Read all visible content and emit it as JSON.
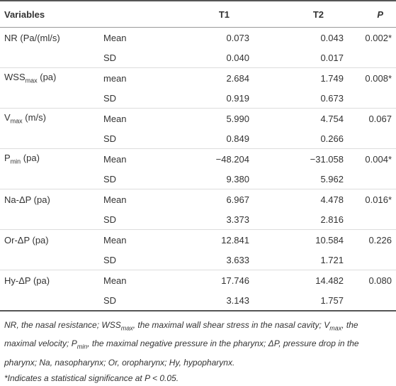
{
  "table": {
    "header": {
      "variables": "Variables",
      "t1": "T1",
      "t2": "T2",
      "p": "P"
    },
    "groups": [
      {
        "variable": {
          "base": "NR (Pa/(ml/s)"
        },
        "rows": [
          {
            "stat": "Mean",
            "t1": "0.073",
            "t2": "0.043",
            "p": "0.002*"
          },
          {
            "stat": "SD",
            "t1": "0.040",
            "t2": "0.017"
          }
        ]
      },
      {
        "variable": {
          "base": "WSS",
          "sub": "max",
          "suffix": " (pa)"
        },
        "rows": [
          {
            "stat": "mean",
            "t1": "2.684",
            "t2": "1.749",
            "p": "0.008*"
          },
          {
            "stat": "SD",
            "t1": "0.919",
            "t2": "0.673"
          }
        ]
      },
      {
        "variable": {
          "base": "V",
          "sub": "max",
          "suffix": " (m/s)"
        },
        "rows": [
          {
            "stat": "Mean",
            "t1": "5.990",
            "t2": "4.754",
            "p": "0.067"
          },
          {
            "stat": "SD",
            "t1": "0.849",
            "t2": "0.266"
          }
        ]
      },
      {
        "variable": {
          "base": "P",
          "sub": "min",
          "suffix": " (pa)"
        },
        "rows": [
          {
            "stat": "Mean",
            "t1": "−48.204",
            "t2": "−31.058",
            "p": "0.004*"
          },
          {
            "stat": "SD",
            "t1": "9.380",
            "t2": "5.962"
          }
        ]
      },
      {
        "variable": {
          "base": "Na-ΔP (pa)"
        },
        "rows": [
          {
            "stat": "Mean",
            "t1": "6.967",
            "t2": "4.478",
            "p": "0.016*"
          },
          {
            "stat": "SD",
            "t1": "3.373",
            "t2": "2.816"
          }
        ]
      },
      {
        "variable": {
          "base": "Or-ΔP (pa)"
        },
        "rows": [
          {
            "stat": "Mean",
            "t1": "12.841",
            "t2": "10.584",
            "p": "0.226"
          },
          {
            "stat": "SD",
            "t1": "3.633",
            "t2": "1.721"
          }
        ]
      },
      {
        "variable": {
          "base": "Hy-ΔP (pa)"
        },
        "rows": [
          {
            "stat": "Mean",
            "t1": "17.746",
            "t2": "14.482",
            "p": "0.080"
          },
          {
            "stat": "SD",
            "t1": "3.143",
            "t2": "1.757"
          }
        ]
      }
    ]
  },
  "footnotes": [
    [
      {
        "text": "NR, the nasal resistance; WSS"
      },
      {
        "text": "max",
        "sub": true
      },
      {
        "text": ", the maximal wall shear stress in the nasal cavity; V"
      },
      {
        "text": "max",
        "sub": true
      },
      {
        "text": ", the maximal velocity; P"
      },
      {
        "text": "min",
        "sub": true
      },
      {
        "text": ", the maximal negative pressure in the pharynx; ΔP, pressure drop in the pharynx; Na, nasopharynx; Or, oropharynx; Hy, hypopharynx."
      }
    ],
    [
      {
        "text": "*Indicates a statistical significance at P < 0.05."
      }
    ]
  ]
}
